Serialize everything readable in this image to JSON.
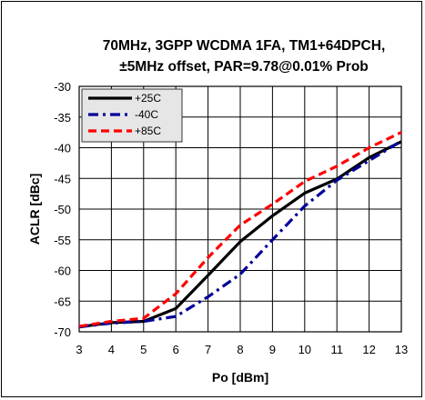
{
  "chart_data": {
    "type": "line",
    "title_lines": [
      "70MHz, 3GPP WCDMA 1FA, TM1+64DPCH,",
      "±5MHz offset, PAR=9.78@0.01% Prob"
    ],
    "xlabel": "Po [dBm]",
    "ylabel": "ACLR [dBc]",
    "xlim": [
      3,
      13
    ],
    "ylim": [
      -70,
      -30
    ],
    "x_ticks": [
      3,
      4,
      5,
      6,
      7,
      8,
      9,
      10,
      11,
      12,
      13
    ],
    "y_ticks": [
      -30,
      -35,
      -40,
      -45,
      -50,
      -55,
      -60,
      -65,
      -70
    ],
    "grid": true,
    "legend_position": "top-left",
    "series": [
      {
        "name": "+25C",
        "color": "#000000",
        "style": "solid",
        "x": [
          3,
          4,
          5,
          6,
          7,
          8,
          9,
          10,
          11,
          12,
          13
        ],
        "y": [
          -69.2,
          -68.5,
          -68.3,
          -66.2,
          -60.8,
          -55.3,
          -51.1,
          -47.4,
          -45.1,
          -41.6,
          -39.0
        ]
      },
      {
        "name": "-40C",
        "color": "#000099",
        "style": "dashdot",
        "x": [
          3,
          4,
          5,
          6,
          7,
          8,
          9,
          10,
          11,
          12,
          13
        ],
        "y": [
          -69.2,
          -68.6,
          -68.3,
          -67.5,
          -64.3,
          -60.6,
          -55.0,
          -49.5,
          -45.3,
          -42.1,
          -38.9
        ]
      },
      {
        "name": "+85C",
        "color": "#ff0000",
        "style": "dashed",
        "x": [
          3,
          4,
          5,
          6,
          7,
          8,
          9,
          10,
          11,
          12,
          13
        ],
        "y": [
          -69.1,
          -68.3,
          -67.8,
          -63.8,
          -57.9,
          -52.6,
          -49.2,
          -45.5,
          -43.0,
          -40.0,
          -37.5
        ]
      }
    ]
  }
}
